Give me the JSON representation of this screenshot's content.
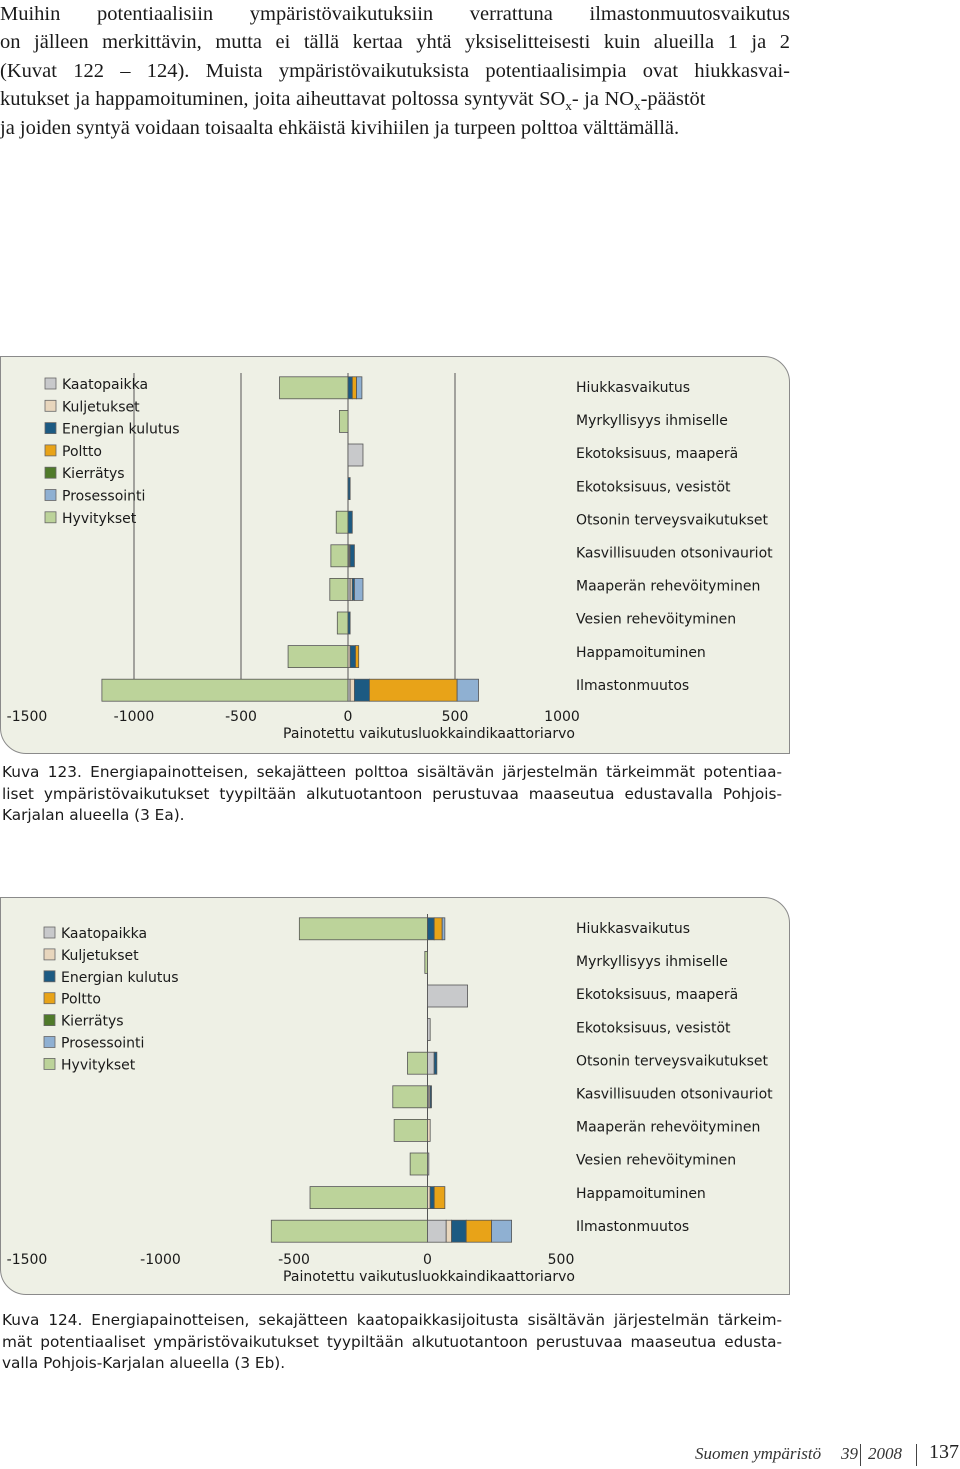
{
  "intro": {
    "lines": [
      "Muihin potentiaalisiin ympäristövaikutuksiin verrattuna ilmastonmuutosvaikutus",
      "on jälleen merkittävin, mutta ei tällä kertaa yhtä yksiselitteisesti kuin alueilla 1 ja 2",
      "(Kuvat 122 – 124). Muista ympäristövaikutuksista potentiaalisimpia ovat hiukkasvai-",
      "kutukset ja happamoituminen, joita aiheuttavat poltossa syntyvät SO",
      "x",
      "- ja NO",
      "x",
      "-päästöt",
      "ja joiden syntyä voidaan toisaalta ehkäistä kivihiilen ja turpeen polttoa välttämällä."
    ]
  },
  "legend": [
    "Kaatopaikka",
    "Kuljetukset",
    "Energian kulutus",
    "Poltto",
    "Kierrätys",
    "Prosessointi",
    "Hyvitykset"
  ],
  "colors": {
    "Kaatopaikka": "#c8c9cb",
    "Kuljetukset": "#e8d6bd",
    "Energian kulutus": "#1c5a82",
    "Poltto": "#e8a318",
    "Kierrätys": "#4f7a2a",
    "Prosessointi": "#8fb0d2",
    "Hyvitykset": "#bcd39a",
    "panel_background": "#eef0e5",
    "gridline": "#555555"
  },
  "figures": [
    {
      "caption_lines": [
        "Kuva 123. Energiapainotteisen, sekajätteen polttoa sisältävän järjestelmän tärkeimmät potentiaa-",
        "liset ympäristövaikutukset tyypiltään alkutuotantoon perustuvaa maaseutua edustavalla Pohjois-",
        "Karjalan alueella (3 Ea)."
      ]
    },
    {
      "caption_lines": [
        "Kuva 124. Energiapainotteisen, sekajätteen kaatopaikkasijoitusta sisältävän järjestelmän tärkeim-",
        "mät potentiaaliset ympäristövaikutukset tyypiltään alkutuotantoon perustuvaa maaseutua edusta-",
        "valla Pohjois-Karjalan alueella (3 Eb)."
      ]
    }
  ],
  "chart_data": [
    {
      "type": "bar",
      "orientation": "horizontal",
      "stacked": true,
      "categories": [
        "Hiukkasvaikutus",
        "Myrkyllisyys ihmiselle",
        "Ekotoksisuus, maaperä",
        "Ekotoksisuus, vesistöt",
        "Otsonin terveysvaikutukset",
        "Kasvillisuuden otsonivauriot",
        "Maaperän rehevöityminen",
        "Vesien rehevöityminen",
        "Happamoituminen",
        "Ilmastonmuutos"
      ],
      "xlabel": "Painotettu vaikutusluokkaindikaattoriarvo",
      "xlim": [
        -1500,
        1000
      ],
      "xticks": [
        -1500,
        -1000,
        -500,
        0,
        500,
        1000
      ],
      "xtick_labels": [
        "-1500",
        "-1000",
        "-500",
        "0",
        "500",
        "1000"
      ],
      "grid_x": [
        -1000,
        -500,
        0,
        500
      ],
      "legend_position": "top-left",
      "series": [
        {
          "name": "Kaatopaikka",
          "values": [
            0,
            0,
            70,
            0,
            0,
            5,
            10,
            0,
            0,
            10
          ]
        },
        {
          "name": "Kuljetukset",
          "values": [
            0,
            0,
            0,
            0,
            0,
            5,
            10,
            0,
            10,
            20
          ]
        },
        {
          "name": "Energian kulutus",
          "values": [
            20,
            0,
            0,
            10,
            20,
            20,
            10,
            10,
            25,
            70
          ]
        },
        {
          "name": "Poltto",
          "values": [
            20,
            0,
            0,
            0,
            0,
            0,
            0,
            0,
            15,
            410
          ]
        },
        {
          "name": "Kierrätys",
          "values": [
            0,
            0,
            0,
            0,
            0,
            0,
            0,
            0,
            0,
            0
          ]
        },
        {
          "name": "Prosessointi",
          "values": [
            25,
            0,
            0,
            0,
            0,
            0,
            40,
            0,
            0,
            100
          ]
        },
        {
          "name": "Hyvitykset",
          "values": [
            -320,
            -40,
            0,
            0,
            -55,
            -80,
            -85,
            -50,
            -280,
            -1150
          ]
        }
      ]
    },
    {
      "type": "bar",
      "orientation": "horizontal",
      "stacked": true,
      "categories": [
        "Hiukkasvaikutus",
        "Myrkyllisyys ihmiselle",
        "Ekotoksisuus, maaperä",
        "Ekotoksisuus, vesistöt",
        "Otsonin terveysvaikutukset",
        "Kasvillisuuden otsonivauriot",
        "Maaperän rehevöityminen",
        "Vesien rehevöityminen",
        "Happamoituminen",
        "Ilmastonmuutos"
      ],
      "xlabel": "Painotettu vaikutusluokkaindikaattoriarvo",
      "xlim": [
        -1500,
        500
      ],
      "xticks": [
        -1500,
        -1000,
        -500,
        0,
        500
      ],
      "xtick_labels": [
        "-1500",
        "-1000",
        "-500",
        "0",
        "500"
      ],
      "grid_x": [
        0
      ],
      "legend_position": "top-left",
      "series": [
        {
          "name": "Kaatopaikka",
          "values": [
            0,
            0,
            150,
            10,
            25,
            5,
            0,
            5,
            0,
            70
          ]
        },
        {
          "name": "Kuljetukset",
          "values": [
            0,
            0,
            0,
            0,
            0,
            5,
            10,
            0,
            10,
            20
          ]
        },
        {
          "name": "Energian kulutus",
          "values": [
            25,
            0,
            0,
            0,
            10,
            5,
            0,
            0,
            15,
            55
          ]
        },
        {
          "name": "Poltto",
          "values": [
            30,
            0,
            0,
            0,
            0,
            0,
            0,
            0,
            40,
            95
          ]
        },
        {
          "name": "Kierrätys",
          "values": [
            0,
            0,
            0,
            0,
            0,
            0,
            0,
            0,
            0,
            0
          ]
        },
        {
          "name": "Prosessointi",
          "values": [
            10,
            0,
            0,
            0,
            0,
            0,
            0,
            0,
            0,
            75
          ]
        },
        {
          "name": "Hyvitykset",
          "values": [
            -480,
            -10,
            0,
            0,
            -75,
            -130,
            -125,
            -65,
            -440,
            -585
          ]
        }
      ]
    }
  ],
  "footer": {
    "publication": "Suomen ympäristö",
    "number": "39",
    "year": "2008",
    "page": "137"
  }
}
